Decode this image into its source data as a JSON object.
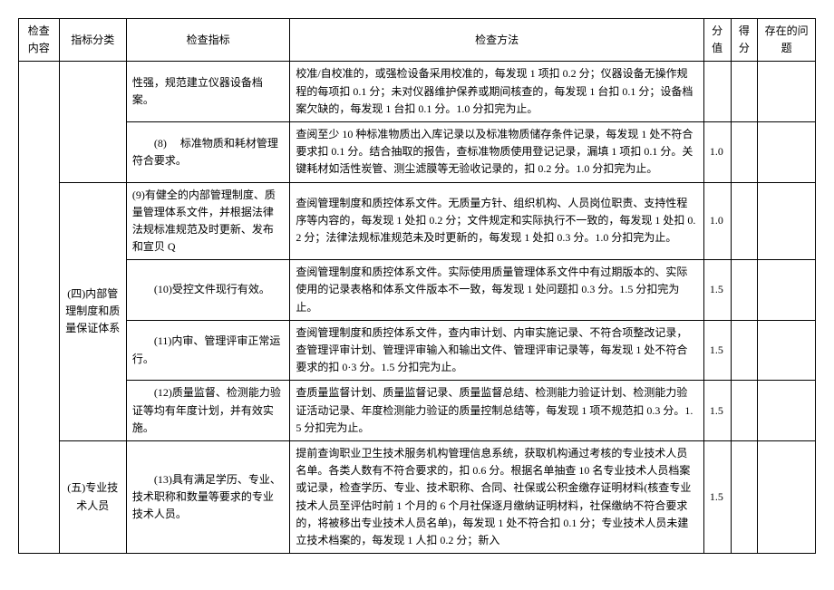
{
  "headers": {
    "check_content": "检查内容",
    "category": "指标分类",
    "indicator": "检查指标",
    "method": "检查方法",
    "score": "分值",
    "got": "得分",
    "issue": "存在的问题"
  },
  "rows": [
    {
      "category": "",
      "indicator": "性强，规范建立仪器设备档案。",
      "method": "校准/自校准的，或强检设备采用校准的，每发现 1 项扣 0.2 分；仪器设备无操作规程的每项扣 0.1 分；未对仪器维护保养或期间核查的，每发现 1 台扣 0.1 分；设备档案欠缺的，每发现 1 台扣 0.1 分。1.0 分扣完为止。",
      "score": ""
    },
    {
      "category": "",
      "indicator": "(8) 　标准物质和耗材管理符合要求。",
      "method": "查阅至少 10 种标准物质出入库记录以及标准物质储存条件记录，每发现 1 处不符合要求扣 0.1 分。结合抽取的报告，查标准物质使用登记记录，漏填 1 项扣 0.1 分。关键耗材如活性炭管、测尘滤膜等无验收记录的，扣 0.2 分。1.0 分扣完为止。",
      "score": "1.0"
    },
    {
      "category": "(四)内部管理制度和质量保证体系",
      "indicator": "(9)有健全的内部管理制度、质量管理体系文件，并根据法律法规标准规范及时更新、发布和宣贝 Q",
      "method": "查阅管理制度和质控体系文件。无质量方针、组织机构、人员岗位职责、支持性程序等内容的，每发现 1 处扣 0.2 分；文件规定和实际执行不一致的，每发现 1 处扣 0.2 分；法律法规标准规范未及时更新的，每发现 1 处扣 0.3 分。1.0 分扣完为止。",
      "score": "1.0"
    },
    {
      "category": "",
      "indicator": "(10)受控文件现行有效。",
      "method": "查阅管理制度和质控体系文件。实际使用质量管理体系文件中有过期版本的、实际使用的记录表格和体系文件版本不一致，每发现 1 处问题扣 0.3 分。1.5 分扣完为止。",
      "score": "1.5"
    },
    {
      "category": "",
      "indicator": "(11)内审、管理评审正常运行。",
      "method": "查阅管理制度和质控体系文件，查内审计划、内审实施记录、不符合项整改记录，查管理评审计划、管理评审输入和输出文件、管理评审记录等，每发现 1 处不符合要求的扣 0·3 分。1.5 分扣完为止。",
      "score": "1.5"
    },
    {
      "category": "",
      "indicator": "(12)质量监督、检测能力验证等均有年度计划，并有效实施。",
      "method": "查质量监督计划、质量监督记录、质量监督总结、检测能力验证计划、检测能力验证活动记录、年度检测能力验证的质量控制总结等，每发现 1 项不规范扣 0.3 分。1.5 分扣完为止。",
      "score": "1.5"
    },
    {
      "category": "(五)专业技术人员",
      "indicator": "(13)具有满足学历、专业、技术职称和数量等要求的专业技术人员。",
      "method": "提前查询职业卫生技术服务机构管理信息系统，获取机构通过考核的专业技术人员名单。各类人数有不符合要求的，扣 0.6 分。根据名单抽查 10 名专业技术人员档案或记录，检查学历、专业、技术职称、合同、社保或公积金缴存证明材料(核查专业技术人员至评估时前 1 个月的 6 个月社保逐月缴纳证明材料，社保缴纳不符合要求的，将被移出专业技术人员名单)，每发现 1 处不符合扣 0.1 分；专业技术人员未建立技术档案的，每发现 1 人扣 0.2 分；新入",
      "score": "1.5"
    }
  ]
}
